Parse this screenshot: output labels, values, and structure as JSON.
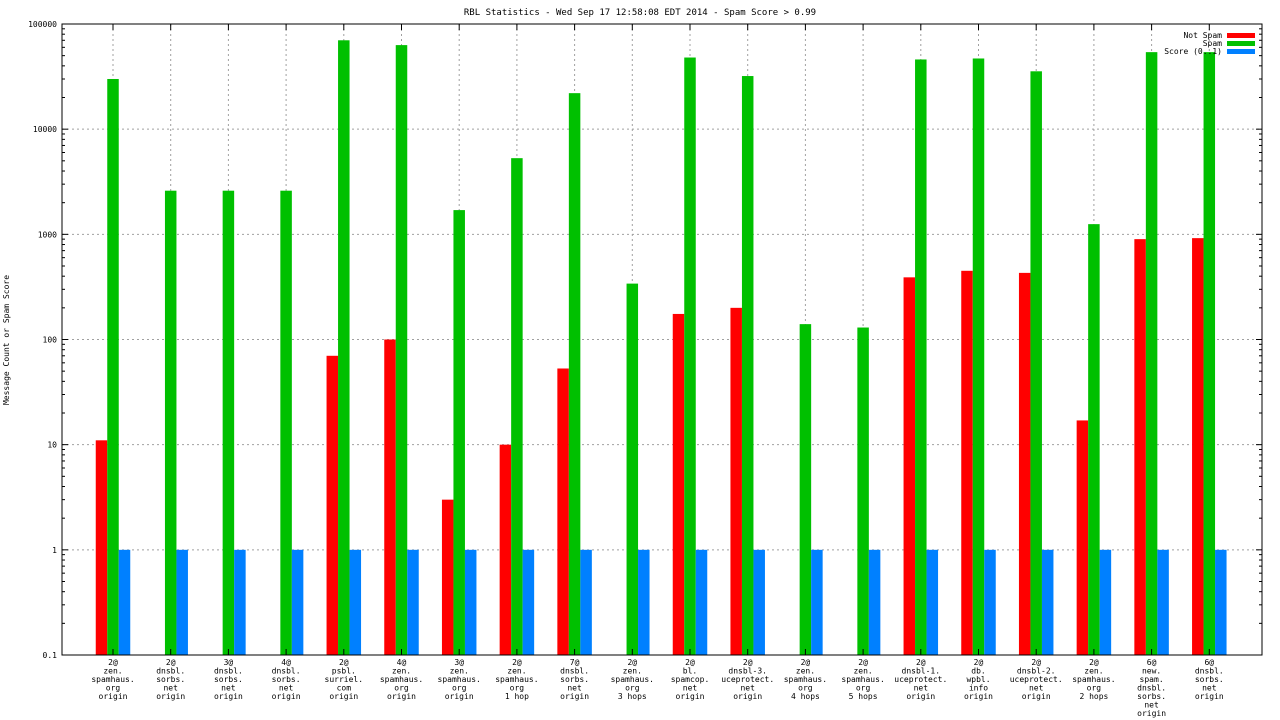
{
  "chart_data": {
    "type": "bar",
    "title": "RBL Statistics - Wed Sep 17 12:58:08 EDT 2014 - Spam Score > 0.99",
    "xlabel": "",
    "ylabel": "Message Count or Spam Score",
    "yscale": "log",
    "ylim": [
      0.1,
      100000
    ],
    "yticks": [
      "0.1",
      "1",
      "10",
      "100",
      "1000",
      "10000",
      "100000"
    ],
    "grid": true,
    "legend_position": "top-right",
    "categories": [
      [
        "2@",
        "zen.",
        "spamhaus.",
        "org",
        "origin"
      ],
      [
        "2@",
        "dnsbl.",
        "sorbs.",
        "net",
        "origin"
      ],
      [
        "3@",
        "dnsbl.",
        "sorbs.",
        "net",
        "origin"
      ],
      [
        "4@",
        "dnsbl.",
        "sorbs.",
        "net",
        "origin"
      ],
      [
        "2@",
        "psbl.",
        "surriel.",
        "com",
        "origin"
      ],
      [
        "4@",
        "zen.",
        "spamhaus.",
        "org",
        "origin"
      ],
      [
        "3@",
        "zen.",
        "spamhaus.",
        "org",
        "origin"
      ],
      [
        "2@",
        "zen.",
        "spamhaus.",
        "org",
        "1 hop"
      ],
      [
        "7@",
        "dnsbl.",
        "sorbs.",
        "net",
        "origin"
      ],
      [
        "2@",
        "zen.",
        "spamhaus.",
        "org",
        "3 hops"
      ],
      [
        "2@",
        "bl.",
        "spamcop.",
        "net",
        "origin"
      ],
      [
        "2@",
        "dnsbl-3.",
        "uceprotect.",
        "net",
        "origin"
      ],
      [
        "2@",
        "zen.",
        "spamhaus.",
        "org",
        "4 hops"
      ],
      [
        "2@",
        "zen.",
        "spamhaus.",
        "org",
        "5 hops"
      ],
      [
        "2@",
        "dnsbl-1.",
        "uceprotect.",
        "net",
        "origin"
      ],
      [
        "2@",
        "db.",
        "wpbl.",
        "info",
        "origin"
      ],
      [
        "2@",
        "dnsbl-2.",
        "uceprotect.",
        "net",
        "origin"
      ],
      [
        "2@",
        "zen.",
        "spamhaus.",
        "org",
        "2 hops"
      ],
      [
        "6@",
        "new.",
        "spam.",
        "dnsbl.",
        "sorbs.",
        "net",
        "origin"
      ],
      [
        "6@",
        "dnsbl.",
        "sorbs.",
        "net",
        "origin"
      ]
    ],
    "series": [
      {
        "name": "Not Spam",
        "color": "#ff0000",
        "values": [
          11,
          null,
          null,
          null,
          70,
          100,
          3,
          10,
          53,
          null,
          175,
          200,
          null,
          null,
          390,
          450,
          430,
          17,
          900,
          920
        ]
      },
      {
        "name": "Spam",
        "color": "#00c000",
        "values": [
          30000,
          2600,
          2600,
          2600,
          70000,
          63000,
          1700,
          5300,
          22000,
          340,
          48000,
          32000,
          140,
          130,
          46000,
          47000,
          35500,
          1250,
          54000,
          54000
        ]
      },
      {
        "name": "Score (0..1)",
        "color": "#0080ff",
        "values": [
          1,
          1,
          1,
          1,
          1,
          1,
          1,
          1,
          1,
          1,
          1,
          1,
          1,
          1,
          1,
          1,
          1,
          1,
          1,
          1
        ]
      }
    ]
  }
}
